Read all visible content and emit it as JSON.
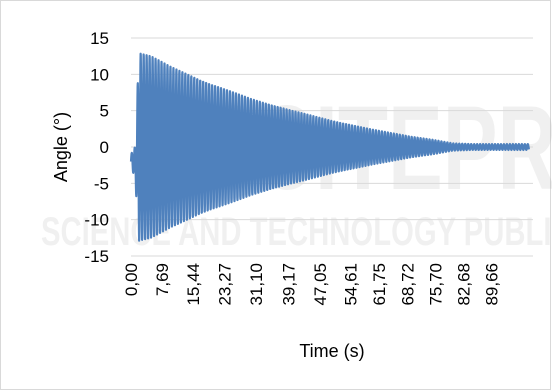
{
  "watermark": {
    "logo_text": "SCITEPRESS",
    "tagline": "SCIENCE AND TECHNOLOGY PUBLICATIONS"
  },
  "chart_data": {
    "type": "line",
    "title": "",
    "xlabel": "Time (s)",
    "ylabel": "Angle (°)",
    "ylim": [
      -15,
      15
    ],
    "yticks": [
      -15,
      -10,
      -5,
      0,
      5,
      10,
      15
    ],
    "ytick_labels": [
      "-15",
      "-10",
      "-5",
      "0",
      "5",
      "10",
      "15"
    ],
    "xlim": [
      0,
      100
    ],
    "xtick_values": [
      0.0,
      7.69,
      15.44,
      23.27,
      31.1,
      39.17,
      47.05,
      54.61,
      61.75,
      68.72,
      75.7,
      82.68,
      89.66
    ],
    "xtick_labels": [
      "0,00",
      "7,69",
      "15,44",
      "23,27",
      "31,10",
      "39,17",
      "47,05",
      "54,61",
      "61,75",
      "68,72",
      "75,70",
      "82,68",
      "89,66"
    ],
    "grid": "horizontal",
    "legend": "none",
    "series_color": "#4f81bd",
    "series": [
      {
        "description": "damped oscillation envelope (amplitude vs time)",
        "x": [
          0.0,
          1.0,
          2.0,
          5.0,
          10.0,
          20.0,
          30.0,
          40.0,
          50.0,
          60.0,
          70.0,
          75.0,
          80.0,
          85.0,
          90.0,
          95.0,
          99.0
        ],
        "amplitude": [
          1.0,
          2.0,
          13.0,
          12.5,
          11.0,
          8.6,
          6.6,
          5.0,
          3.6,
          2.4,
          1.4,
          1.0,
          0.5,
          0.4,
          0.4,
          0.4,
          0.4
        ],
        "center": [
          -2.0,
          -2.0,
          0.0,
          0.0,
          0.0,
          0.0,
          0.0,
          0.0,
          0.0,
          0.0,
          0.0,
          0.0,
          0.0,
          0.0,
          0.0,
          0.0,
          0.0
        ]
      }
    ]
  }
}
